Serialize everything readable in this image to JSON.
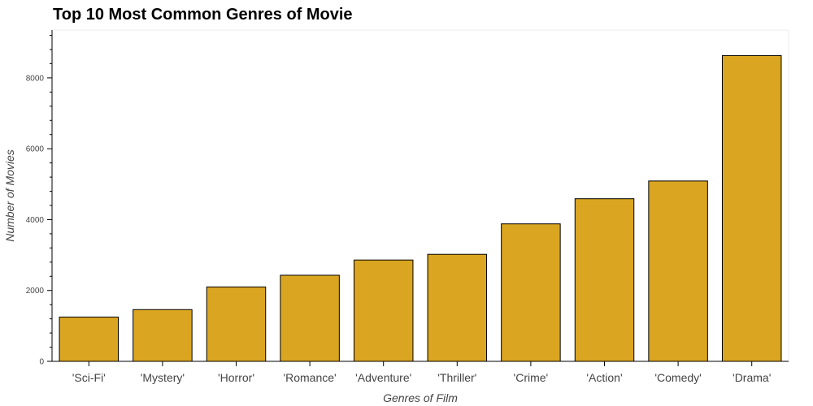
{
  "chart_data": {
    "type": "bar",
    "title": "Top 10 Most Common Genres of Movie",
    "xlabel": "Genres of Film",
    "ylabel": "Number of Movies",
    "categories": [
      "'Sci-Fi'",
      "'Mystery'",
      "'Horror'",
      "'Romance'",
      "'Adventure'",
      "'Thriller'",
      "'Crime'",
      "'Action'",
      "'Comedy'",
      "'Drama'"
    ],
    "values": [
      1250,
      1460,
      2100,
      2430,
      2860,
      3020,
      3880,
      4590,
      5090,
      8630
    ],
    "ylim": [
      0,
      9350
    ],
    "yticks": [
      0,
      2000,
      4000,
      6000,
      8000
    ],
    "grid": false,
    "bar_color": "#DAA520",
    "bar_edge_color": "#000000"
  }
}
